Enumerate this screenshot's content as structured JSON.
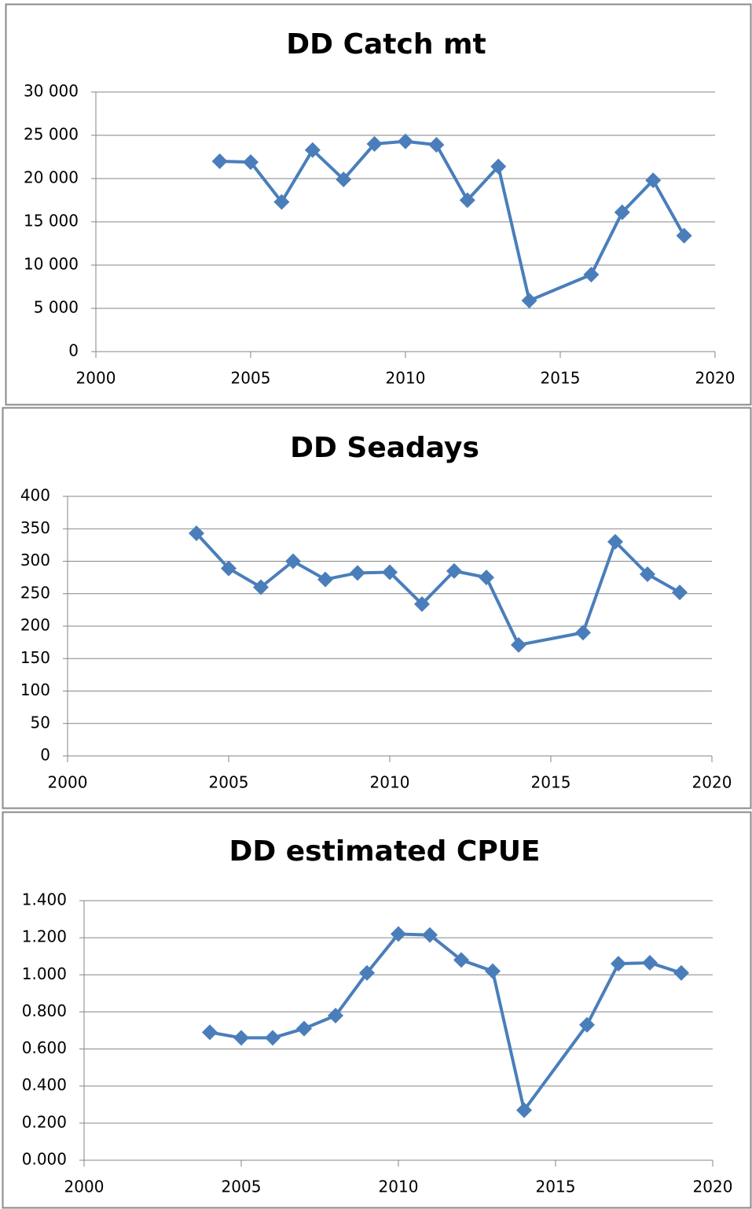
{
  "chart_data": [
    {
      "type": "line",
      "title": "DD Catch mt",
      "x": [
        2004,
        2005,
        2006,
        2007,
        2008,
        2009,
        2010,
        2011,
        2012,
        2013,
        2014,
        2016,
        2017,
        2018,
        2019
      ],
      "series": [
        {
          "color": "#4a7ebb",
          "values": [
            22000,
            21900,
            17300,
            23300,
            19900,
            24000,
            24300,
            23900,
            17500,
            21400,
            5900,
            8900,
            16100,
            19800,
            13400
          ]
        }
      ],
      "xlim": [
        2000,
        2020
      ],
      "xticks": [
        2000,
        2005,
        2010,
        2015,
        2020
      ],
      "ylim": [
        0,
        30000
      ],
      "yticks": [
        0,
        {
          "value": 5000,
          "label": "5 000"
        },
        {
          "value": 10000,
          "label": "10 000"
        },
        {
          "value": 15000,
          "label": "15 000"
        },
        {
          "value": 20000,
          "label": "20 000"
        },
        {
          "value": 25000,
          "label": "25 000"
        },
        {
          "value": 30000,
          "label": "30 000"
        }
      ],
      "grid": true
    },
    {
      "type": "line",
      "title": "DD Seadays",
      "x": [
        2004,
        2005,
        2006,
        2007,
        2008,
        2009,
        2010,
        2011,
        2012,
        2013,
        2014,
        2016,
        2017,
        2018,
        2019
      ],
      "series": [
        {
          "color": "#4a7ebb",
          "values": [
            343,
            289,
            260,
            300,
            272,
            282,
            283,
            234,
            285,
            275,
            171,
            190,
            330,
            280,
            252
          ]
        }
      ],
      "xlim": [
        2000,
        2020
      ],
      "xticks": [
        2000,
        2005,
        2010,
        2015,
        2020
      ],
      "ylim": [
        0,
        400
      ],
      "yticks": [
        0,
        50,
        100,
        150,
        200,
        250,
        300,
        350,
        400
      ],
      "grid": true
    },
    {
      "type": "line",
      "title": "DD estimated CPUE",
      "x": [
        2004,
        2005,
        2006,
        2007,
        2008,
        2009,
        2010,
        2011,
        2012,
        2013,
        2014,
        2016,
        2017,
        2018,
        2019
      ],
      "series": [
        {
          "color": "#4a7ebb",
          "values": [
            0.69,
            0.66,
            0.66,
            0.71,
            0.78,
            1.01,
            1.22,
            1.215,
            1.08,
            1.02,
            0.27,
            0.73,
            1.06,
            1.065,
            1.01
          ]
        }
      ],
      "xlim": [
        2000,
        2020
      ],
      "xticks": [
        2000,
        2005,
        2010,
        2015,
        2020
      ],
      "ylim": [
        0,
        1.4
      ],
      "yticks": [
        {
          "value": 0,
          "label": "0.000"
        },
        {
          "value": 0.2,
          "label": "0.200"
        },
        {
          "value": 0.4,
          "label": "0.400"
        },
        {
          "value": 0.6,
          "label": "0.600"
        },
        {
          "value": 0.8,
          "label": "0.800"
        },
        {
          "value": 1,
          "label": "1.000"
        },
        {
          "value": 1.2,
          "label": "1.200"
        },
        {
          "value": 1.4,
          "label": "1.400"
        }
      ],
      "grid": true
    }
  ]
}
